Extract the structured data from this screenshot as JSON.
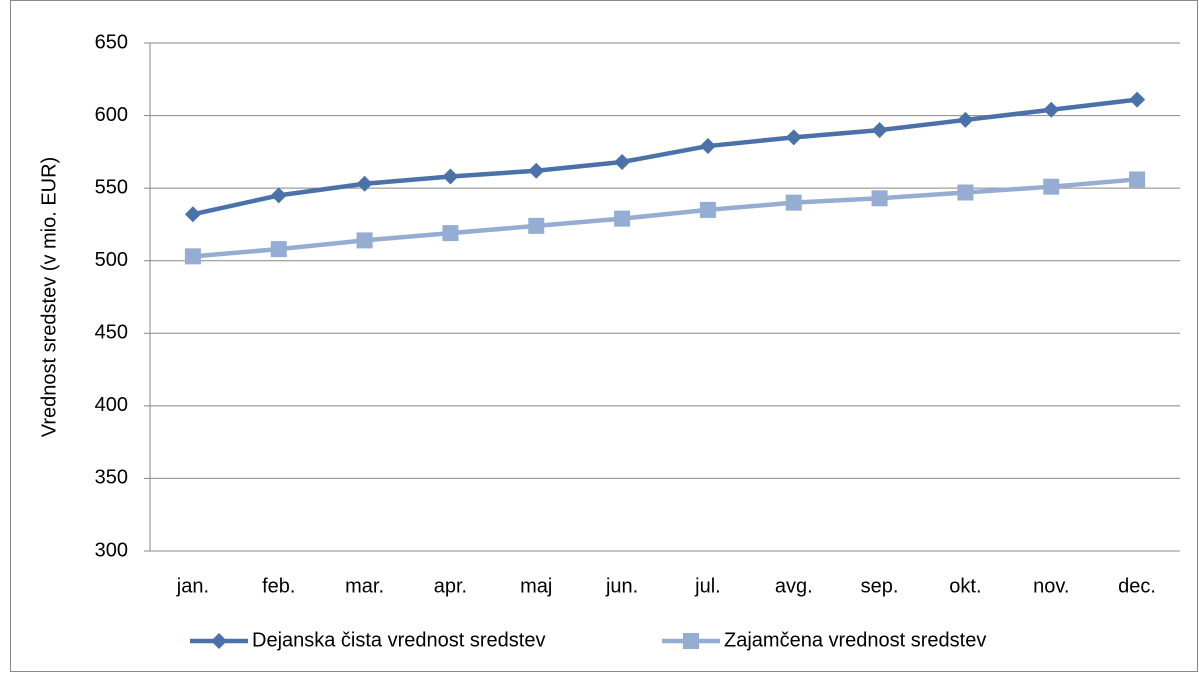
{
  "chart_data": {
    "type": "line",
    "y_label": "Vrednost sredstev (v mio. EUR)",
    "categories": [
      "jan.",
      "feb.",
      "mar.",
      "apr.",
      "maj",
      "jun.",
      "jul.",
      "avg.",
      "sep.",
      "okt.",
      "nov.",
      "dec."
    ],
    "series": [
      {
        "name": "Dejanska čista vrednost sredstev",
        "color": "#4a72a8",
        "marker": "diamond",
        "values": [
          532,
          545,
          553,
          558,
          562,
          568,
          579,
          585,
          590,
          597,
          604,
          611
        ]
      },
      {
        "name": "Zajamčena vrednost sredstev",
        "color": "#95add3",
        "marker": "square",
        "values": [
          503,
          508,
          514,
          519,
          524,
          529,
          535,
          540,
          543,
          547,
          551,
          556
        ]
      }
    ],
    "ylim": [
      300,
      650
    ],
    "yticks": [
      300,
      350,
      400,
      450,
      500,
      550,
      600,
      650
    ],
    "grid": true,
    "legend": "bottom"
  }
}
